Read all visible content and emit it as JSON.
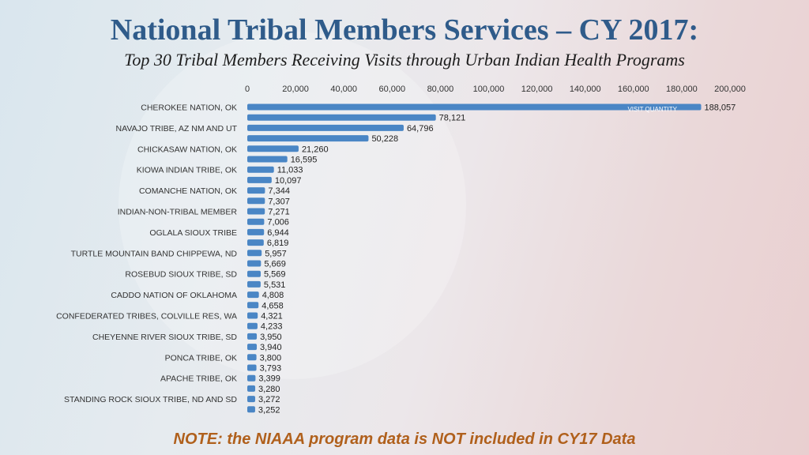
{
  "title": "National Tribal Members Services – CY 2017:",
  "subtitle": "Top 30 Tribal Members Receiving Visits through Urban Indian Health Programs",
  "note": "NOTE:  the NIAAA program data is NOT included in CY17 Data",
  "colors": {
    "bar": "#4a86c5",
    "title": "#2f5b8a",
    "note": "#b0601c"
  },
  "chart_data": {
    "type": "bar",
    "orientation": "horizontal",
    "title": "",
    "legend": [
      "VISIT QUANTITY"
    ],
    "legend_position": "top-right",
    "xlim": [
      0,
      200000
    ],
    "xticks": [
      "0",
      "20,000",
      "40,000",
      "60,000",
      "80,000",
      "100,000",
      "120,000",
      "140,000",
      "160,000",
      "180,000",
      "200,000"
    ],
    "categories": [
      "CHEROKEE NATION, OK",
      "",
      "NAVAJO TRIBE, AZ NM AND UT",
      "",
      "CHICKASAW NATION, OK",
      "",
      "KIOWA INDIAN TRIBE, OK",
      "",
      "COMANCHE NATION, OK",
      "",
      "INDIAN-NON-TRIBAL MEMBER",
      "",
      "OGLALA SIOUX TRIBE",
      "",
      "TURTLE MOUNTAIN BAND CHIPPEWA, ND",
      "",
      "ROSEBUD SIOUX TRIBE, SD",
      "",
      "CADDO NATION OF OKLAHOMA",
      "",
      "CONFEDERATED TRIBES, COLVILLE RES, WA",
      "",
      "CHEYENNE RIVER SIOUX TRIBE, SD",
      "",
      "PONCA TRIBE, OK",
      "",
      "APACHE TRIBE, OK",
      "",
      "STANDING ROCK SIOUX TRIBE, ND AND SD",
      ""
    ],
    "values": [
      188057,
      78121,
      64796,
      50228,
      21260,
      16595,
      11033,
      10097,
      7344,
      7307,
      7271,
      7006,
      6944,
      6819,
      5957,
      5669,
      5569,
      5531,
      4808,
      4658,
      4321,
      4233,
      3950,
      3940,
      3800,
      3793,
      3399,
      3280,
      3272,
      3252
    ],
    "value_labels": [
      "188,057",
      "78,121",
      "64,796",
      "50,228",
      "21,260",
      "16,595",
      "11,033",
      "10,097",
      "7,344",
      "7,307",
      "7,271",
      "7,006",
      "6,944",
      "6,819",
      "5,957",
      "5,669",
      "5,569",
      "5,531",
      "4,808",
      "4,658",
      "4,321",
      "4,233",
      "3,950",
      "3,940",
      "3,800",
      "3,793",
      "3,399",
      "3,280",
      "3,272",
      "3,252"
    ]
  }
}
